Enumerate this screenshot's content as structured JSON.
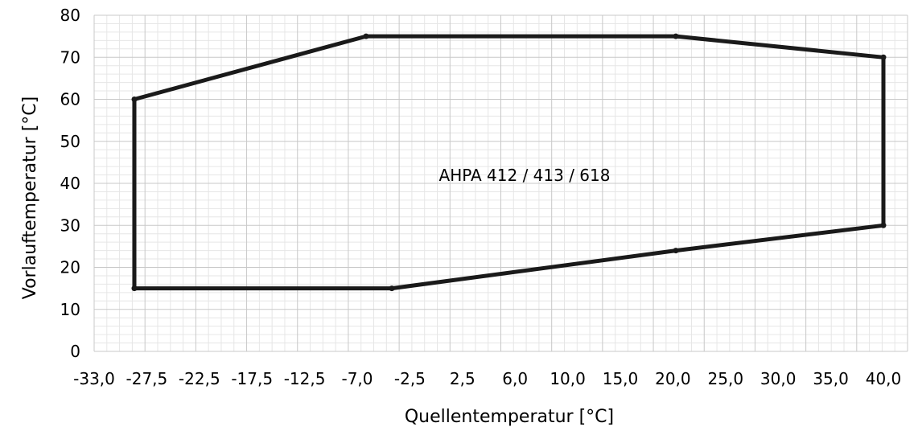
{
  "chart_data": {
    "type": "line",
    "xlabel": "Quellentemperatur [°C]",
    "ylabel": "Vorlauftemperatur [°C]",
    "x_tick_labels": [
      "-33,0",
      "-27,5",
      "-22,5",
      "-17,5",
      "-12,5",
      "-7,0",
      "-2,5",
      "2,5",
      "6,0",
      "10,0",
      "15,0",
      "20,0",
      "25,0",
      "30,0",
      "35,0",
      "40,0"
    ],
    "y_ticks": [
      0,
      10,
      20,
      30,
      40,
      50,
      60,
      70,
      80
    ],
    "ylim": [
      0,
      80
    ],
    "grid": true,
    "annotation": "AHPA 412 / 413 / 618",
    "series": [
      {
        "points": [
          {
            "x": -30,
            "y": 60
          },
          {
            "x": -8,
            "y": 75
          },
          {
            "x": 20,
            "y": 75
          },
          {
            "x": 40,
            "y": 70
          },
          {
            "x": 40,
            "y": 30
          },
          {
            "x": 20,
            "y": 24
          },
          {
            "x": -5,
            "y": 15
          },
          {
            "x": -30,
            "y": 15
          },
          {
            "x": -30,
            "y": 60
          }
        ],
        "color": "#1a1a1a"
      }
    ]
  }
}
